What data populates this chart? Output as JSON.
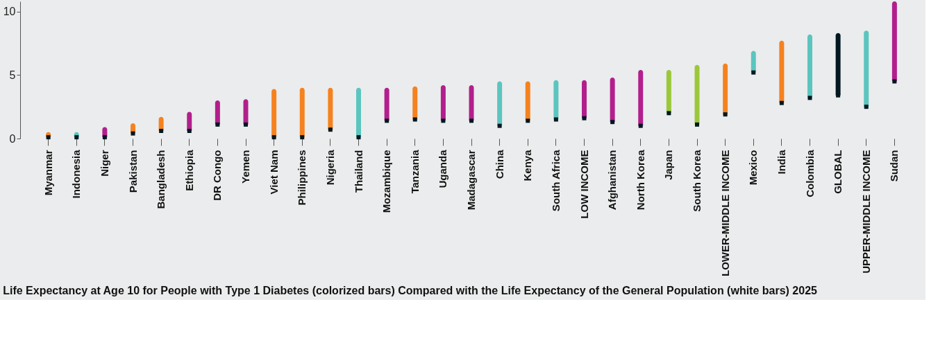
{
  "chart_data": {
    "type": "bar",
    "title": "Life Expectancy at Age 10 for People with Type 1 Diabetes (colorized bars) Compared with the Life Expectancy of the General Population (white bars) 2025",
    "categories": [
      "Myanmar",
      "Indonesia",
      "Niger",
      "Pakistan",
      "Bangladesh",
      "Ethiopia",
      "DR Congo",
      "Yemen",
      "Viet Nam",
      "Philippines",
      "Nigeria",
      "Thailand",
      "Mozambique",
      "Tanzania",
      "Uganda",
      "Madagascar",
      "China",
      "Kenya",
      "South Africa",
      "LOW INCOME",
      "Afghanistan",
      "North Korea",
      "Japan",
      "South Korea",
      "LOWER-MIDDLE INCOME",
      "Mexico",
      "India",
      "Colombia",
      "GLOBAL",
      "UPPER-MIDDLE INCOME",
      "Sudan"
    ],
    "series": [
      {
        "base": [
          0.1,
          0.1,
          0.1,
          0.4,
          0.6,
          0.6,
          1.1,
          1.1,
          0.1,
          0.1,
          0.7,
          0.1,
          1.4,
          1.5,
          1.4,
          1.4,
          1.0,
          1.4,
          1.5,
          1.6,
          1.3,
          1.0,
          2.0,
          1.1,
          1.9,
          5.2,
          2.8,
          3.2,
          3.4,
          2.5,
          4.5
        ],
        "values": [
          0.4,
          0.4,
          0.8,
          0.8,
          1.1,
          1.5,
          1.9,
          2.0,
          3.8,
          3.9,
          3.3,
          3.9,
          2.6,
          2.6,
          2.8,
          2.8,
          3.5,
          3.1,
          3.1,
          3.0,
          3.5,
          4.4,
          3.4,
          4.7,
          4.0,
          1.7,
          4.9,
          5.0,
          4.9,
          6.0,
          6.3
        ],
        "colors": [
          "#f5821f",
          "#5bc5bf",
          "#b21f8c",
          "#f5821f",
          "#f5821f",
          "#b21f8c",
          "#b21f8c",
          "#b21f8c",
          "#f5821f",
          "#f5821f",
          "#f5821f",
          "#5bc5bf",
          "#b21f8c",
          "#f5821f",
          "#b21f8c",
          "#b21f8c",
          "#5bc5bf",
          "#f5821f",
          "#5bc5bf",
          "#b21f8c",
          "#b21f8c",
          "#b21f8c",
          "#9bc83a",
          "#9bc83a",
          "#f5821f",
          "#5bc5bf",
          "#f5821f",
          "#5bc5bf",
          "#011820",
          "#5bc5bf",
          "#b21f8c"
        ]
      },
      {
        "type": "scatter",
        "marker": "square",
        "color": "#011820",
        "values": [
          0.1,
          0.1,
          0.1,
          0.4,
          0.6,
          0.6,
          1.1,
          1.1,
          0.1,
          0.1,
          0.7,
          0.1,
          1.4,
          1.5,
          1.4,
          1.4,
          1.0,
          1.4,
          1.5,
          1.6,
          1.3,
          1.0,
          2.0,
          1.1,
          1.9,
          5.2,
          2.8,
          3.2,
          3.4,
          2.5,
          4.5
        ]
      }
    ],
    "ylim": [
      0,
      10.8
    ],
    "yticks": [
      0,
      5,
      10
    ],
    "grid": false
  }
}
